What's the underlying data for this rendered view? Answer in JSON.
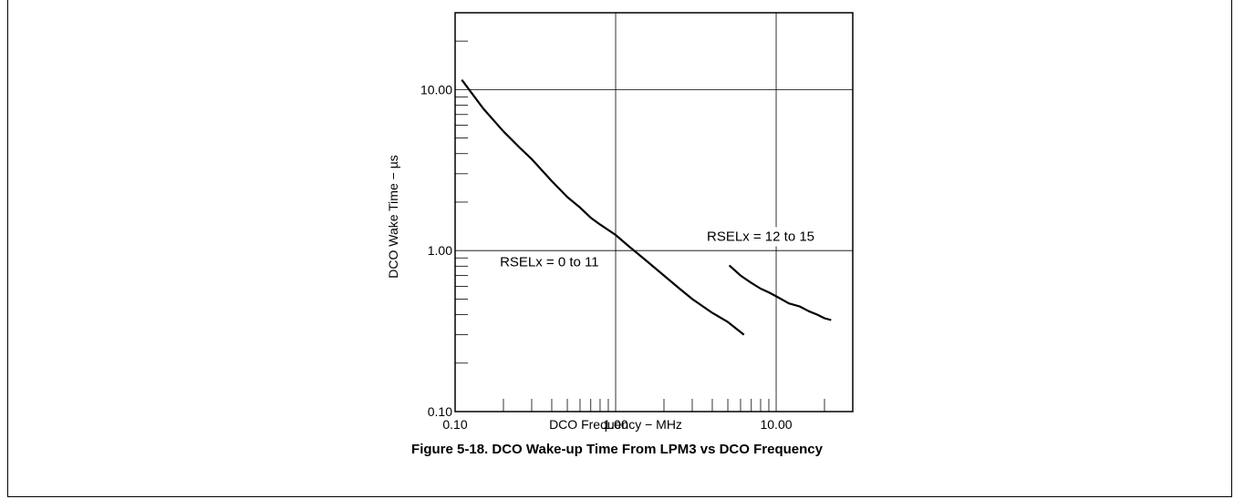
{
  "figure": {
    "caption": "Figure 5-18. DCO Wake-up Time From LPM3 vs DCO Frequency"
  },
  "chart_data": {
    "type": "line",
    "xlabel": "DCO Frequency − MHz",
    "ylabel": "DCO Wake Time − µs",
    "xscale": "log",
    "yscale": "log",
    "xlim": [
      0.1,
      30
    ],
    "ylim": [
      0.1,
      30
    ],
    "grid": true,
    "x_ticks": [
      {
        "value": 0.1,
        "label": "0.10"
      },
      {
        "value": 1,
        "label": "1.00"
      },
      {
        "value": 10,
        "label": "10.00"
      }
    ],
    "y_ticks": [
      {
        "value": 0.1,
        "label": "0.10"
      },
      {
        "value": 1,
        "label": "1.00"
      },
      {
        "value": 10,
        "label": "10.00"
      }
    ],
    "series": [
      {
        "name": "RSELx = 0 to 11",
        "color": "#000000",
        "points": [
          [
            0.11,
            11.5
          ],
          [
            0.13,
            9.2
          ],
          [
            0.15,
            7.6
          ],
          [
            0.2,
            5.5
          ],
          [
            0.25,
            4.4
          ],
          [
            0.3,
            3.7
          ],
          [
            0.4,
            2.7
          ],
          [
            0.5,
            2.15
          ],
          [
            0.6,
            1.85
          ],
          [
            0.7,
            1.6
          ],
          [
            0.8,
            1.45
          ],
          [
            1.0,
            1.25
          ],
          [
            1.2,
            1.07
          ],
          [
            1.5,
            0.89
          ],
          [
            2.0,
            0.7
          ],
          [
            2.5,
            0.58
          ],
          [
            3.0,
            0.5
          ],
          [
            4.0,
            0.41
          ],
          [
            5.0,
            0.36
          ],
          [
            6.3,
            0.3
          ]
        ]
      },
      {
        "name": "RSELx = 12 to 15",
        "color": "#000000",
        "points": [
          [
            5.1,
            0.81
          ],
          [
            6.0,
            0.7
          ],
          [
            7.0,
            0.63
          ],
          [
            8.0,
            0.58
          ],
          [
            9.0,
            0.55
          ],
          [
            10.0,
            0.52
          ],
          [
            12.0,
            0.47
          ],
          [
            14.0,
            0.45
          ],
          [
            16.0,
            0.42
          ],
          [
            18.0,
            0.4
          ],
          [
            20.0,
            0.38
          ],
          [
            22.0,
            0.37
          ]
        ]
      }
    ],
    "annotations": [
      {
        "text": "RSELx = 0 to 11",
        "x": 0.19,
        "y": 0.8
      },
      {
        "text": "RSELx = 12 to 15",
        "x": 3.7,
        "y": 1.15
      }
    ]
  }
}
